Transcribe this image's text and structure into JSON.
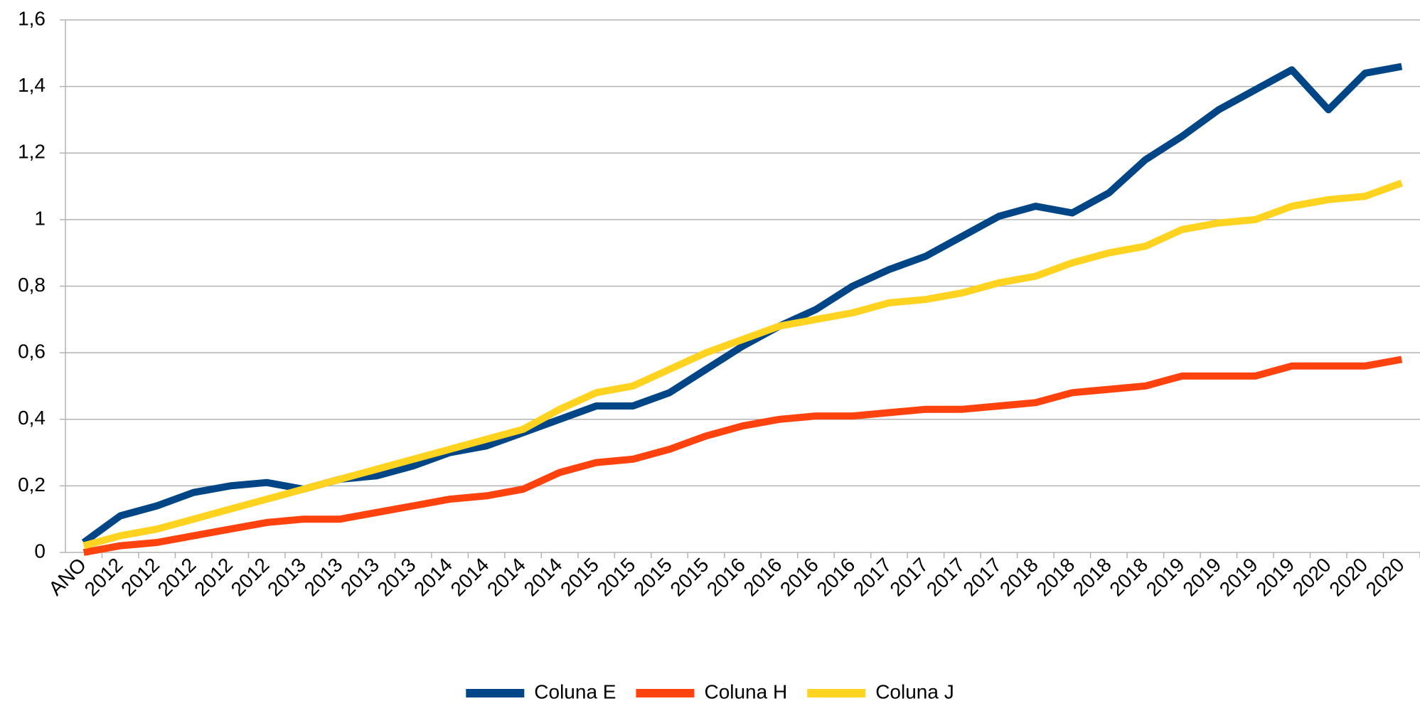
{
  "chart_data": {
    "type": "line",
    "categories": [
      "ANO",
      "2012",
      "2012",
      "2012",
      "2012",
      "2012",
      "2013",
      "2013",
      "2013",
      "2013",
      "2014",
      "2014",
      "2014",
      "2014",
      "2015",
      "2015",
      "2015",
      "2015",
      "2016",
      "2016",
      "2016",
      "2016",
      "2017",
      "2017",
      "2017",
      "2017",
      "2018",
      "2018",
      "2018",
      "2018",
      "2019",
      "2019",
      "2019",
      "2019",
      "2020",
      "2020",
      "2020"
    ],
    "series": [
      {
        "name": "Coluna E",
        "color": "#004586",
        "values": [
          0.03,
          0.11,
          0.14,
          0.18,
          0.2,
          0.21,
          0.19,
          0.22,
          0.23,
          0.26,
          0.3,
          0.32,
          0.36,
          0.4,
          0.44,
          0.44,
          0.48,
          0.55,
          0.62,
          0.68,
          0.73,
          0.8,
          0.85,
          0.89,
          0.95,
          1.01,
          1.04,
          1.02,
          1.08,
          1.18,
          1.25,
          1.33,
          1.39,
          1.45,
          1.33,
          1.44,
          1.46
        ]
      },
      {
        "name": "Coluna H",
        "color": "#ff420e",
        "values": [
          0.0,
          0.02,
          0.03,
          0.05,
          0.07,
          0.09,
          0.1,
          0.1,
          0.12,
          0.14,
          0.16,
          0.17,
          0.19,
          0.24,
          0.27,
          0.28,
          0.31,
          0.35,
          0.38,
          0.4,
          0.41,
          0.41,
          0.42,
          0.43,
          0.43,
          0.44,
          0.45,
          0.48,
          0.49,
          0.5,
          0.53,
          0.53,
          0.53,
          0.56,
          0.56,
          0.56,
          0.58
        ]
      },
      {
        "name": "Coluna J",
        "color": "#ffd320",
        "values": [
          0.02,
          0.05,
          0.07,
          0.1,
          0.13,
          0.16,
          0.19,
          0.22,
          0.25,
          0.28,
          0.31,
          0.34,
          0.37,
          0.43,
          0.48,
          0.5,
          0.55,
          0.6,
          0.64,
          0.68,
          0.7,
          0.72,
          0.75,
          0.76,
          0.78,
          0.81,
          0.83,
          0.87,
          0.9,
          0.92,
          0.97,
          0.99,
          1.0,
          1.04,
          1.06,
          1.07,
          1.11
        ]
      }
    ],
    "ylim": [
      0,
      1.6
    ],
    "yticks": [
      0,
      {
        "value": 0.2,
        "label": "0,2"
      },
      {
        "value": 0.4,
        "label": "0,4"
      },
      {
        "value": 0.6,
        "label": "0,6"
      },
      {
        "value": 0.8,
        "label": "0,8"
      },
      1,
      {
        "value": 1.2,
        "label": "1,2"
      },
      {
        "value": 1.4,
        "label": "1,4"
      },
      {
        "value": 1.6,
        "label": "1,6"
      }
    ],
    "grid": true,
    "legend": "bottom"
  }
}
